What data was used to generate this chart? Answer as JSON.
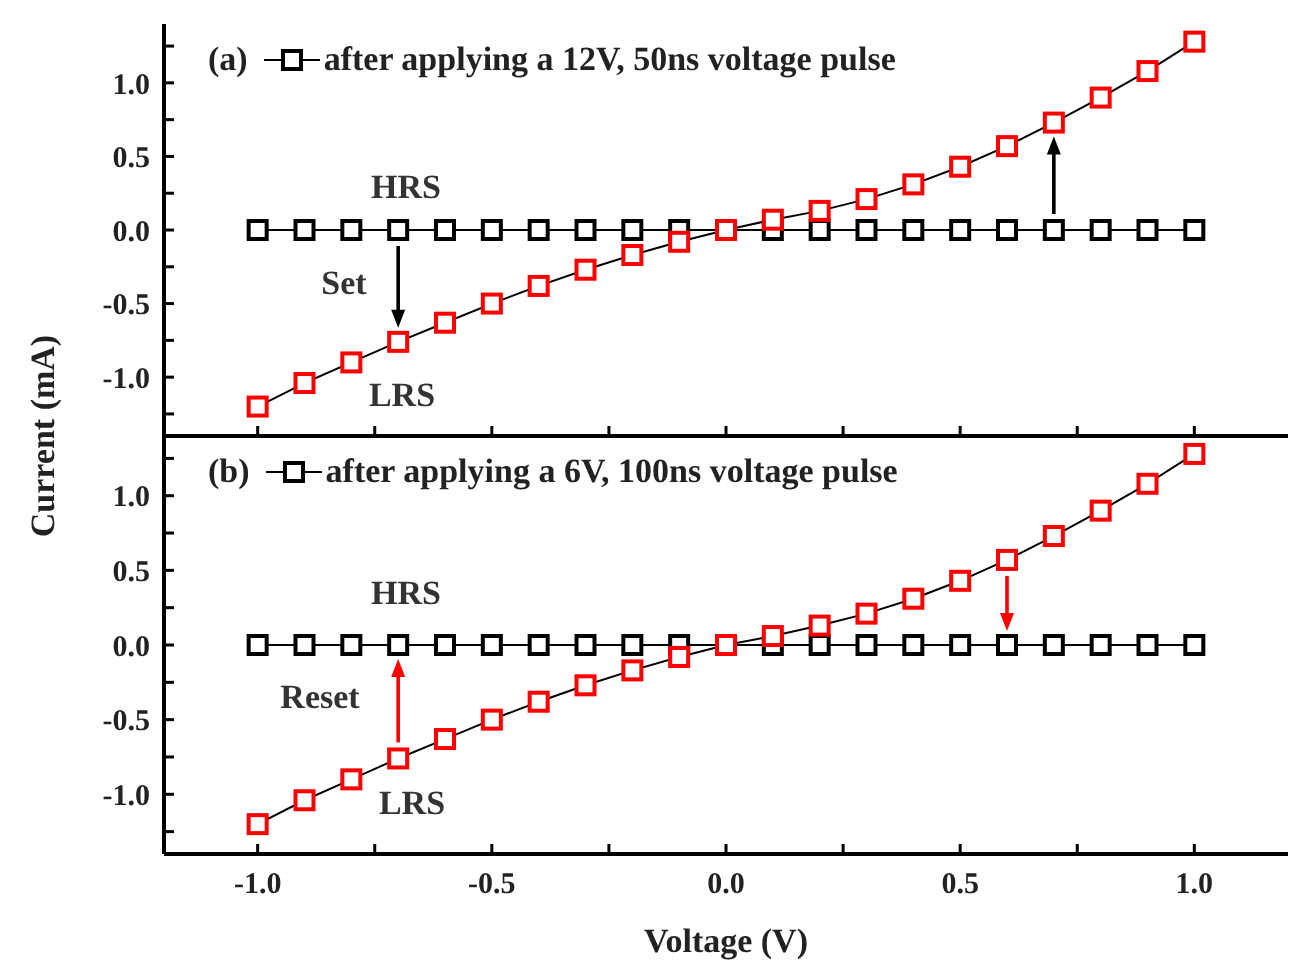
{
  "chart_data": [
    {
      "type": "line",
      "ylabel": "Current (mA)",
      "x": [
        -1.0,
        -0.9,
        -0.8,
        -0.7,
        -0.6,
        -0.5,
        -0.4,
        -0.3,
        -0.2,
        -0.1,
        0.0,
        0.1,
        0.2,
        0.3,
        0.4,
        0.5,
        0.6,
        0.7,
        0.8,
        0.9,
        1.0
      ],
      "series": [
        {
          "name": "after applying a 12V, 50ns voltage pulse",
          "color": "#000000",
          "values": [
            0,
            0,
            0,
            0,
            0,
            0,
            0,
            0,
            0,
            0,
            0,
            0,
            0,
            0,
            0,
            0,
            0,
            0,
            0,
            0,
            0
          ]
        },
        {
          "color": "#ff0000",
          "values": [
            -1.2,
            -1.04,
            -0.9,
            -0.76,
            -0.63,
            -0.5,
            -0.38,
            -0.27,
            -0.17,
            -0.08,
            0,
            0.07,
            0.13,
            0.21,
            0.31,
            0.43,
            0.57,
            0.73,
            0.9,
            1.08,
            1.28
          ]
        }
      ],
      "xlim": [
        -1.2,
        1.2
      ],
      "ylim": [
        -1.4,
        1.4
      ],
      "xticks": [
        -1,
        -0.75,
        -0.5,
        -0.25,
        0,
        0.25,
        0.5,
        0.75,
        1
      ],
      "yticks": [
        {
          "value": -1.25,
          "label": null
        },
        {
          "value": -1.0,
          "label": "-1.0"
        },
        {
          "value": -0.75,
          "label": null
        },
        {
          "value": -0.5,
          "label": "-0.5"
        },
        {
          "value": -0.25,
          "label": null
        },
        {
          "value": 0,
          "label": "0.0"
        },
        {
          "value": 0.25,
          "label": null
        },
        {
          "value": 0.5,
          "label": "0.5"
        },
        {
          "value": 0.75,
          "label": null
        },
        {
          "value": 1.0,
          "label": "1.0"
        },
        {
          "value": 1.25,
          "label": null
        }
      ],
      "tick_labels": "y",
      "marker": "square",
      "line_style": "solid",
      "legend": "top left",
      "grid": false,
      "annotations": [
        "(a)",
        "HRS",
        "Set",
        "LRS"
      ]
    },
    {
      "type": "line",
      "xlabel": "Voltage (V)",
      "x": [
        -1.0,
        -0.9,
        -0.8,
        -0.7,
        -0.6,
        -0.5,
        -0.4,
        -0.3,
        -0.2,
        -0.1,
        0.0,
        0.1,
        0.2,
        0.3,
        0.4,
        0.5,
        0.6,
        0.7,
        0.8,
        0.9,
        1.0
      ],
      "series": [
        {
          "name": "after applying a 6V, 100ns voltage pulse",
          "color": "#000000",
          "values": [
            0,
            0,
            0,
            0,
            0,
            0,
            0,
            0,
            0,
            0,
            0,
            0,
            0,
            0,
            0,
            0,
            0,
            0,
            0,
            0,
            0
          ]
        },
        {
          "color": "#ff0000",
          "values": [
            -1.2,
            -1.04,
            -0.9,
            -0.76,
            -0.63,
            -0.5,
            -0.38,
            -0.27,
            -0.17,
            -0.08,
            0,
            0.06,
            0.13,
            0.21,
            0.31,
            0.43,
            0.57,
            0.73,
            0.9,
            1.08,
            1.28
          ]
        }
      ],
      "xlim": [
        -1.2,
        1.2
      ],
      "ylim": [
        -1.4,
        1.4
      ],
      "xticks": [
        {
          "value": -1.0,
          "label": "-1.0"
        },
        {
          "value": -0.75,
          "label": null
        },
        {
          "value": -0.5,
          "label": "-0.5"
        },
        {
          "value": -0.25,
          "label": null
        },
        {
          "value": 0,
          "label": "0.0"
        },
        {
          "value": 0.25,
          "label": null
        },
        {
          "value": 0.5,
          "label": "0.5"
        },
        {
          "value": 0.75,
          "label": null
        },
        {
          "value": 1.0,
          "label": "1.0"
        }
      ],
      "yticks": [
        {
          "value": -1.25,
          "label": null
        },
        {
          "value": -1.0,
          "label": "-1.0"
        },
        {
          "value": -0.75,
          "label": null
        },
        {
          "value": -0.5,
          "label": "-0.5"
        },
        {
          "value": -0.25,
          "label": null
        },
        {
          "value": 0,
          "label": "0.0"
        },
        {
          "value": 0.25,
          "label": null
        },
        {
          "value": 0.5,
          "label": "0.5"
        },
        {
          "value": 0.75,
          "label": null
        },
        {
          "value": 1.0,
          "label": "1.0"
        },
        {
          "value": 1.25,
          "label": null
        }
      ],
      "marker": "square",
      "line_style": "solid",
      "legend": "top left",
      "grid": false,
      "annotations": [
        "(b)",
        "HRS",
        "Reset",
        "LRS"
      ]
    }
  ]
}
